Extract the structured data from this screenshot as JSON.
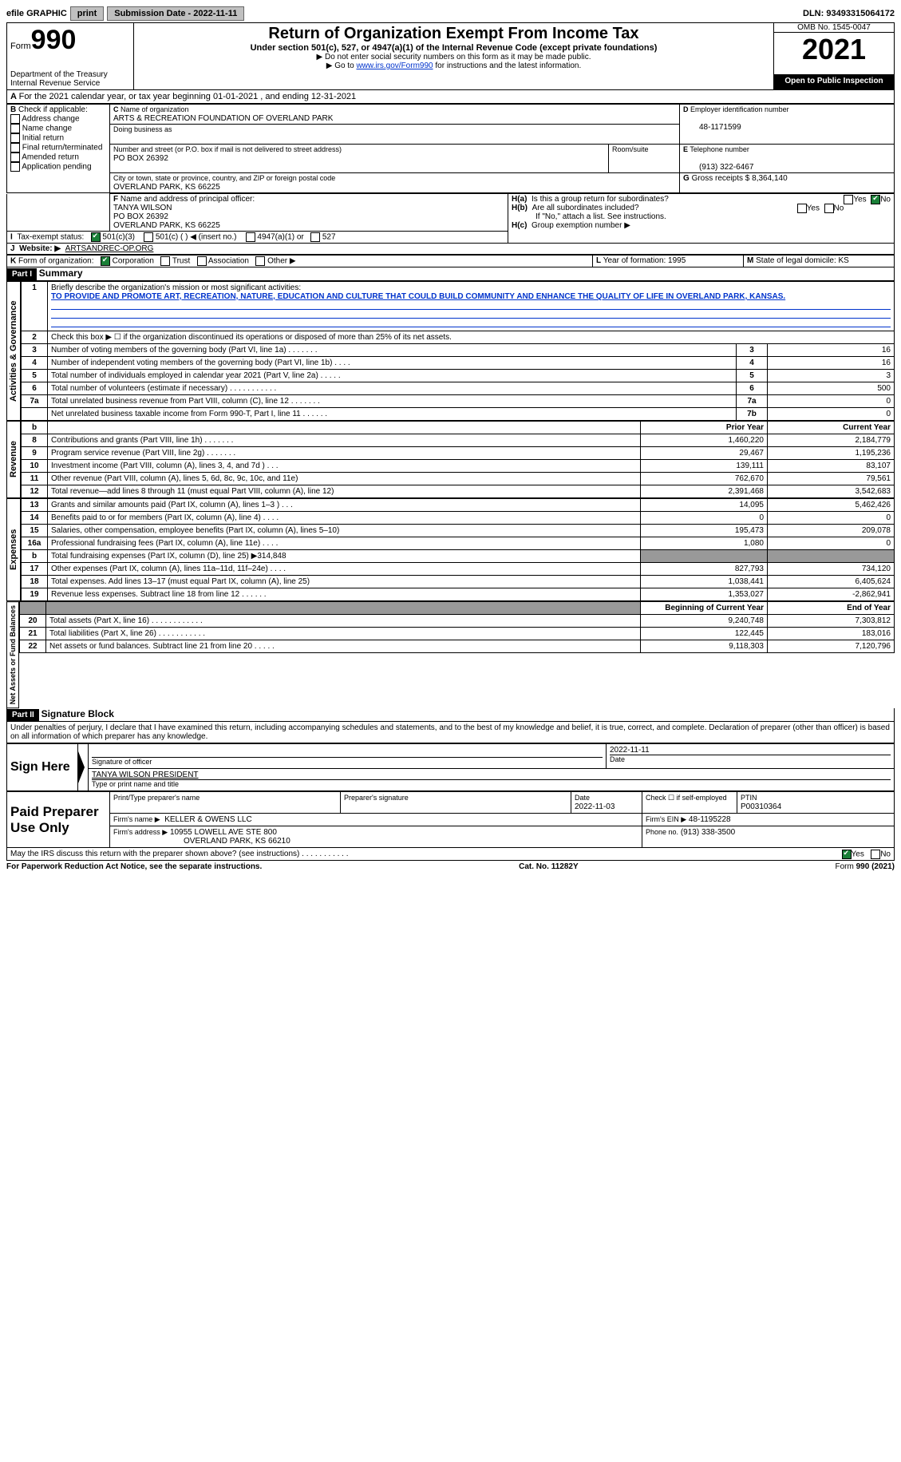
{
  "topbar": {
    "efile": "efile GRAPHIC",
    "print": "print",
    "subdate_label": "Submission Date - 2022-11-11",
    "dln": "DLN: 93493315064172"
  },
  "header": {
    "form_prefix": "Form",
    "form_no": "990",
    "dept": "Department of the Treasury",
    "irs": "Internal Revenue Service",
    "title": "Return of Organization Exempt From Income Tax",
    "sub1": "Under section 501(c), 527, or 4947(a)(1) of the Internal Revenue Code (except private foundations)",
    "sub2": "▶ Do not enter social security numbers on this form as it may be made public.",
    "sub3_pre": "▶ Go to ",
    "sub3_link": "www.irs.gov/Form990",
    "sub3_post": " for instructions and the latest information.",
    "omb": "OMB No. 1545-0047",
    "year": "2021",
    "open": "Open to Public Inspection"
  },
  "period": "For the 2021 calendar year, or tax year beginning 01-01-2021   , and ending 12-31-2021",
  "boxB": {
    "label": "Check if applicable:",
    "opts": [
      "Address change",
      "Name change",
      "Initial return",
      "Final return/terminated",
      "Amended return",
      "Application pending"
    ]
  },
  "boxC": {
    "name_label": "Name of organization",
    "name": "ARTS & RECREATION FOUNDATION OF OVERLAND PARK",
    "dba_label": "Doing business as",
    "addr_label": "Number and street (or P.O. box if mail is not delivered to street address)",
    "addr": "PO BOX 26392",
    "room_label": "Room/suite",
    "city_label": "City or town, state or province, country, and ZIP or foreign postal code",
    "city": "OVERLAND PARK, KS  66225"
  },
  "boxD": {
    "label": "Employer identification number",
    "val": "48-1171599"
  },
  "boxE": {
    "label": "Telephone number",
    "val": "(913) 322-6467"
  },
  "boxG": {
    "label": "Gross receipts $",
    "val": "8,364,140"
  },
  "boxF": {
    "label": "Name and address of principal officer:",
    "lines": [
      "TANYA WILSON",
      "PO BOX 26392",
      "OVERLAND PARK, KS  66225"
    ]
  },
  "boxH": {
    "a": "Is this a group return for subordinates?",
    "b": "Are all subordinates included?",
    "note": "If \"No,\" attach a list. See instructions.",
    "c": "Group exemption number ▶",
    "yes": "Yes",
    "no": "No"
  },
  "rowI": {
    "label": "Tax-exempt status:",
    "opts": [
      "501(c)(3)",
      "501(c) (  ) ◀ (insert no.)",
      "4947(a)(1) or",
      "527"
    ]
  },
  "rowJ": {
    "label": "Website: ▶",
    "val": "ARTSANDREC-OP.ORG"
  },
  "rowK": {
    "label": "Form of organization:",
    "opts": [
      "Corporation",
      "Trust",
      "Association",
      "Other ▶"
    ],
    "L": "Year of formation: 1995",
    "M": "State of legal domicile: KS"
  },
  "partI": {
    "hdr": "Part I",
    "title": "Summary"
  },
  "mission_label": "Briefly describe the organization's mission or most significant activities:",
  "mission": "TO PROVIDE AND PROMOTE ART, RECREATION, NATURE, EDUCATION AND CULTURE THAT COULD BUILD COMMUNITY AND ENHANCE THE QUALITY OF LIFE IN OVERLAND PARK, KANSAS.",
  "line2": "Check this box ▶ ☐ if the organization discontinued its operations or disposed of more than 25% of its net assets.",
  "sideLabels": {
    "act": "Activities & Governance",
    "rev": "Revenue",
    "exp": "Expenses",
    "net": "Net Assets or Fund Balances"
  },
  "cols": {
    "prior": "Prior Year",
    "curr": "Current Year",
    "beg": "Beginning of Current Year",
    "end": "End of Year"
  },
  "gov_lines": [
    {
      "n": "3",
      "t": "Number of voting members of the governing body (Part VI, line 1a)  .   .   .   .   .   .   .",
      "box": "3",
      "v": "16"
    },
    {
      "n": "4",
      "t": "Number of independent voting members of the governing body (Part VI, line 1b)  .   .   .   .",
      "box": "4",
      "v": "16"
    },
    {
      "n": "5",
      "t": "Total number of individuals employed in calendar year 2021 (Part V, line 2a)  .   .   .   .   .",
      "box": "5",
      "v": "3"
    },
    {
      "n": "6",
      "t": "Total number of volunteers (estimate if necessary)   .   .   .   .   .   .   .   .   .   .   .",
      "box": "6",
      "v": "500"
    },
    {
      "n": "7a",
      "t": "Total unrelated business revenue from Part VIII, column (C), line 12  .   .   .   .   .   .   .",
      "box": "7a",
      "v": "0"
    },
    {
      "n": "",
      "t": "Net unrelated business taxable income from Form 990-T, Part I, line 11  .   .   .   .   .   .",
      "box": "7b",
      "v": "0"
    }
  ],
  "rev_lines": [
    {
      "n": "8",
      "t": "Contributions and grants (Part VIII, line 1h)   .   .   .   .   .   .   .",
      "p": "1,460,220",
      "c": "2,184,779"
    },
    {
      "n": "9",
      "t": "Program service revenue (Part VIII, line 2g)   .   .   .   .   .   .   .",
      "p": "29,467",
      "c": "1,195,236"
    },
    {
      "n": "10",
      "t": "Investment income (Part VIII, column (A), lines 3, 4, and 7d )   .   .   .",
      "p": "139,111",
      "c": "83,107"
    },
    {
      "n": "11",
      "t": "Other revenue (Part VIII, column (A), lines 5, 6d, 8c, 9c, 10c, and 11e)",
      "p": "762,670",
      "c": "79,561"
    },
    {
      "n": "12",
      "t": "Total revenue—add lines 8 through 11 (must equal Part VIII, column (A), line 12)",
      "p": "2,391,468",
      "c": "3,542,683"
    }
  ],
  "exp_lines": [
    {
      "n": "13",
      "t": "Grants and similar amounts paid (Part IX, column (A), lines 1–3 )  .   .   .",
      "p": "14,095",
      "c": "5,462,426"
    },
    {
      "n": "14",
      "t": "Benefits paid to or for members (Part IX, column (A), line 4)  .   .   .   .",
      "p": "0",
      "c": "0"
    },
    {
      "n": "15",
      "t": "Salaries, other compensation, employee benefits (Part IX, column (A), lines 5–10)",
      "p": "195,473",
      "c": "209,078"
    },
    {
      "n": "16a",
      "t": "Professional fundraising fees (Part IX, column (A), line 11e)  .   .   .   .",
      "p": "1,080",
      "c": "0"
    },
    {
      "n": "b",
      "t": "Total fundraising expenses (Part IX, column (D), line 25) ▶314,848",
      "p": "SHADE",
      "c": "SHADE"
    },
    {
      "n": "17",
      "t": "Other expenses (Part IX, column (A), lines 11a–11d, 11f–24e)  .   .   .   .",
      "p": "827,793",
      "c": "734,120"
    },
    {
      "n": "18",
      "t": "Total expenses. Add lines 13–17 (must equal Part IX, column (A), line 25)",
      "p": "1,038,441",
      "c": "6,405,624"
    },
    {
      "n": "19",
      "t": "Revenue less expenses. Subtract line 18 from line 12  .   .   .   .   .   .",
      "p": "1,353,027",
      "c": "-2,862,941"
    }
  ],
  "net_lines": [
    {
      "n": "20",
      "t": "Total assets (Part X, line 16)  .   .   .   .   .   .   .   .   .   .   .   .",
      "p": "9,240,748",
      "c": "7,303,812"
    },
    {
      "n": "21",
      "t": "Total liabilities (Part X, line 26)  .   .   .   .   .   .   .   .   .   .   .",
      "p": "122,445",
      "c": "183,016"
    },
    {
      "n": "22",
      "t": "Net assets or fund balances. Subtract line 21 from line 20  .   .   .   .   .",
      "p": "9,118,303",
      "c": "7,120,796"
    }
  ],
  "partII": {
    "hdr": "Part II",
    "title": "Signature Block"
  },
  "penalties": "Under penalties of perjury, I declare that I have examined this return, including accompanying schedules and statements, and to the best of my knowledge and belief, it is true, correct, and complete. Declaration of preparer (other than officer) is based on all information of which preparer has any knowledge.",
  "sign": {
    "here": "Sign Here",
    "sig_label": "Signature of officer",
    "date": "2022-11-11",
    "date_label": "Date",
    "name": "TANYA WILSON  PRESIDENT",
    "name_label": "Type or print name and title"
  },
  "paid": {
    "title": "Paid Preparer Use Only",
    "col1": "Print/Type preparer's name",
    "col2": "Preparer's signature",
    "date_label": "Date",
    "date": "2022-11-03",
    "check_label": "Check ☐ if self-employed",
    "ptin_label": "PTIN",
    "ptin": "P00310364",
    "firm_name_label": "Firm's name   ▶",
    "firm_name": "KELLER & OWENS LLC",
    "firm_ein_label": "Firm's EIN ▶",
    "firm_ein": "48-1195228",
    "firm_addr_label": "Firm's address ▶",
    "firm_addr1": "10955 LOWELL AVE STE 800",
    "firm_addr2": "OVERLAND PARK, KS  66210",
    "phone_label": "Phone no.",
    "phone": "(913) 338-3500"
  },
  "discuss": "May the IRS discuss this return with the preparer shown above? (see instructions)  .   .   .   .   .   .   .   .   .   .   .",
  "foot": {
    "left": "For Paperwork Reduction Act Notice, see the separate instructions.",
    "mid": "Cat. No. 11282Y",
    "right": "Form 990 (2021)"
  }
}
